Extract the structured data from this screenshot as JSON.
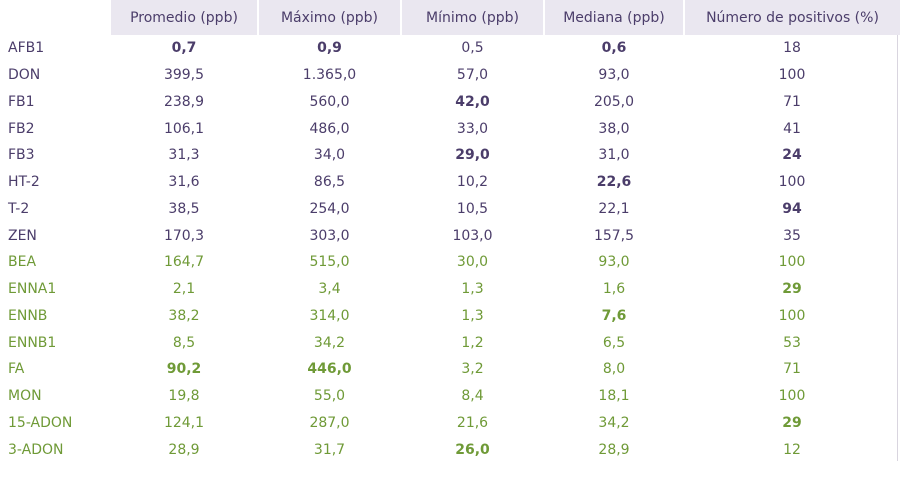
{
  "table": {
    "headers": [
      "",
      "Promedio (ppb)",
      "Máximo (ppb)",
      "Mínimo (ppb)",
      "Mediana (ppb)",
      "Número de positivos (%)"
    ],
    "rows": [
      {
        "group": "purple",
        "cells": [
          "AFB1",
          "0,7",
          "0,9",
          "0,5",
          "0,6",
          "18"
        ],
        "bold": [
          false,
          true,
          true,
          false,
          true,
          false
        ]
      },
      {
        "group": "purple",
        "cells": [
          "DON",
          "399,5",
          "1.365,0",
          "57,0",
          "93,0",
          "100"
        ],
        "bold": [
          false,
          false,
          false,
          false,
          false,
          false
        ]
      },
      {
        "group": "purple",
        "cells": [
          "FB1",
          "238,9",
          "560,0",
          "42,0",
          "205,0",
          "71"
        ],
        "bold": [
          false,
          false,
          false,
          true,
          false,
          false
        ]
      },
      {
        "group": "purple",
        "cells": [
          "FB2",
          "106,1",
          "486,0",
          "33,0",
          "38,0",
          "41"
        ],
        "bold": [
          false,
          false,
          false,
          false,
          false,
          false
        ]
      },
      {
        "group": "purple",
        "cells": [
          "FB3",
          "31,3",
          "34,0",
          "29,0",
          "31,0",
          "24"
        ],
        "bold": [
          false,
          false,
          false,
          true,
          false,
          true
        ]
      },
      {
        "group": "purple",
        "cells": [
          "HT-2",
          "31,6",
          "86,5",
          "10,2",
          "22,6",
          "100"
        ],
        "bold": [
          false,
          false,
          false,
          false,
          true,
          false
        ]
      },
      {
        "group": "purple",
        "cells": [
          "T-2",
          "38,5",
          "254,0",
          "10,5",
          "22,1",
          "94"
        ],
        "bold": [
          false,
          false,
          false,
          false,
          false,
          true
        ]
      },
      {
        "group": "purple",
        "cells": [
          "ZEN",
          "170,3",
          "303,0",
          "103,0",
          "157,5",
          "35"
        ],
        "bold": [
          false,
          false,
          false,
          false,
          false,
          false
        ]
      },
      {
        "group": "green",
        "cells": [
          "BEA",
          "164,7",
          "515,0",
          "30,0",
          "93,0",
          "100"
        ],
        "bold": [
          false,
          false,
          false,
          false,
          false,
          false
        ]
      },
      {
        "group": "green",
        "cells": [
          "ENNA1",
          "2,1",
          "3,4",
          "1,3",
          "1,6",
          "29"
        ],
        "bold": [
          false,
          false,
          false,
          false,
          false,
          true
        ]
      },
      {
        "group": "green",
        "cells": [
          "ENNB",
          "38,2",
          "314,0",
          "1,3",
          "7,6",
          "100"
        ],
        "bold": [
          false,
          false,
          false,
          false,
          true,
          false
        ]
      },
      {
        "group": "green",
        "cells": [
          "ENNB1",
          "8,5",
          "34,2",
          "1,2",
          "6,5",
          "53"
        ],
        "bold": [
          false,
          false,
          false,
          false,
          false,
          false
        ]
      },
      {
        "group": "green",
        "cells": [
          "FA",
          "90,2",
          "446,0",
          "3,2",
          "8,0",
          "71"
        ],
        "bold": [
          false,
          true,
          true,
          false,
          false,
          false
        ]
      },
      {
        "group": "green",
        "cells": [
          "MON",
          "19,8",
          "55,0",
          "8,4",
          "18,1",
          "100"
        ],
        "bold": [
          false,
          false,
          false,
          false,
          false,
          false
        ]
      },
      {
        "group": "green",
        "cells": [
          "15-ADON",
          "124,1",
          "287,0",
          "21,6",
          "34,2",
          "29"
        ],
        "bold": [
          false,
          false,
          false,
          false,
          false,
          true
        ]
      },
      {
        "group": "green",
        "cells": [
          "3-ADON",
          "28,9",
          "31,7",
          "26,0",
          "28,9",
          "12"
        ],
        "bold": [
          false,
          false,
          false,
          true,
          false,
          false
        ]
      }
    ]
  },
  "colors": {
    "header_bg": "#eae7f0",
    "purple_text": "#4b3d6a",
    "green_text": "#6f9a37"
  }
}
